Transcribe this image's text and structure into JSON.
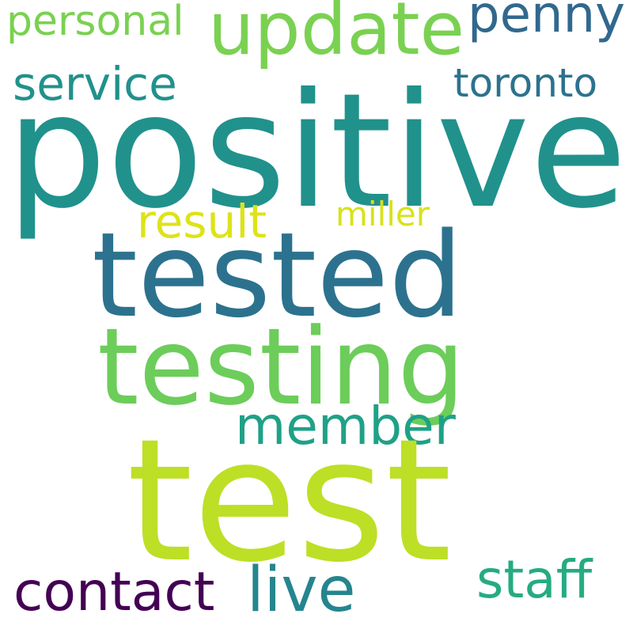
{
  "words": [
    {
      "text": "personal",
      "color": "#7ad151"
    },
    {
      "text": "update",
      "color": "#7ad151"
    },
    {
      "text": "penny",
      "color": "#31688e"
    },
    {
      "text": "service",
      "color": "#21918c"
    },
    {
      "text": "toronto",
      "color": "#2c728e"
    },
    {
      "text": "positive",
      "color": "#21918c"
    },
    {
      "text": "result",
      "color": "#dde318"
    },
    {
      "text": "miller",
      "color": "#d8e219"
    },
    {
      "text": "tested",
      "color": "#2c728e"
    },
    {
      "text": "testing",
      "color": "#6ccd5a"
    },
    {
      "text": "member",
      "color": "#1fa187"
    },
    {
      "text": "test",
      "color": "#bddf26"
    },
    {
      "text": "contact",
      "color": "#440154"
    },
    {
      "text": "live",
      "color": "#25858e"
    },
    {
      "text": "staff",
      "color": "#25ab82"
    }
  ]
}
